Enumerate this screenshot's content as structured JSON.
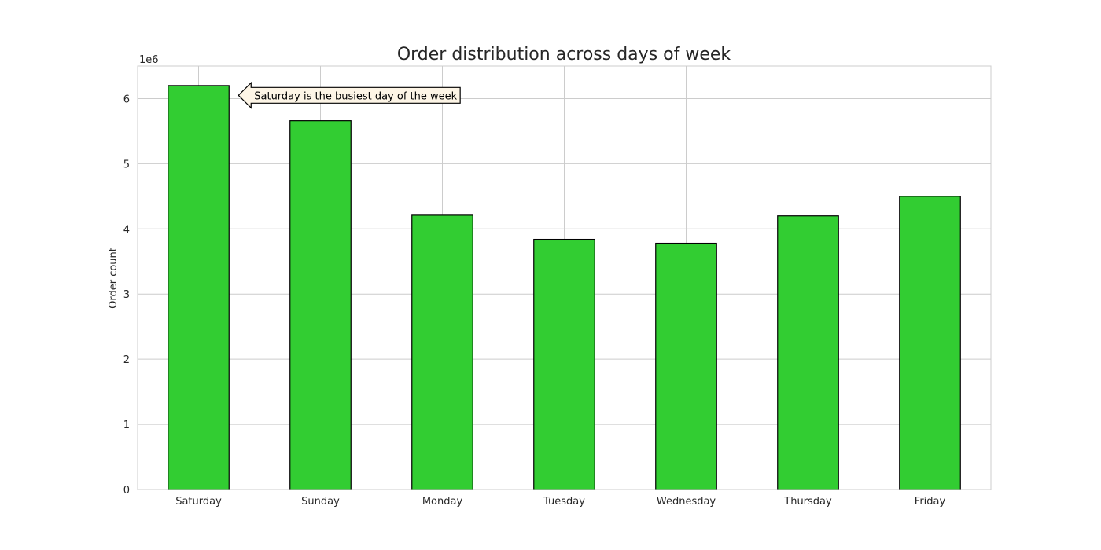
{
  "chart_data": {
    "type": "bar",
    "title": "Order distribution across days of week",
    "xlabel": "",
    "ylabel": "Order count",
    "y_offset_label": "1e6",
    "y_multiplier": 1000000,
    "categories": [
      "Saturday",
      "Sunday",
      "Monday",
      "Tuesday",
      "Wednesday",
      "Thursday",
      "Friday"
    ],
    "values": [
      6200000,
      5660000,
      4210000,
      3840000,
      3780000,
      4200000,
      4500000
    ],
    "ylim": [
      0,
      6500000
    ],
    "yticks": [
      0,
      1000000,
      2000000,
      3000000,
      4000000,
      5000000,
      6000000
    ],
    "ytick_labels": [
      "0",
      "1",
      "2",
      "3",
      "4",
      "5",
      "6"
    ],
    "grid": true,
    "bar_color": "#32cd32",
    "edge_color": "#000000",
    "annotation": {
      "text": "Saturday is the busiest day of the week",
      "target_category": "Saturday",
      "y_value": 6050000,
      "box_color": "#fdf5e6"
    }
  }
}
